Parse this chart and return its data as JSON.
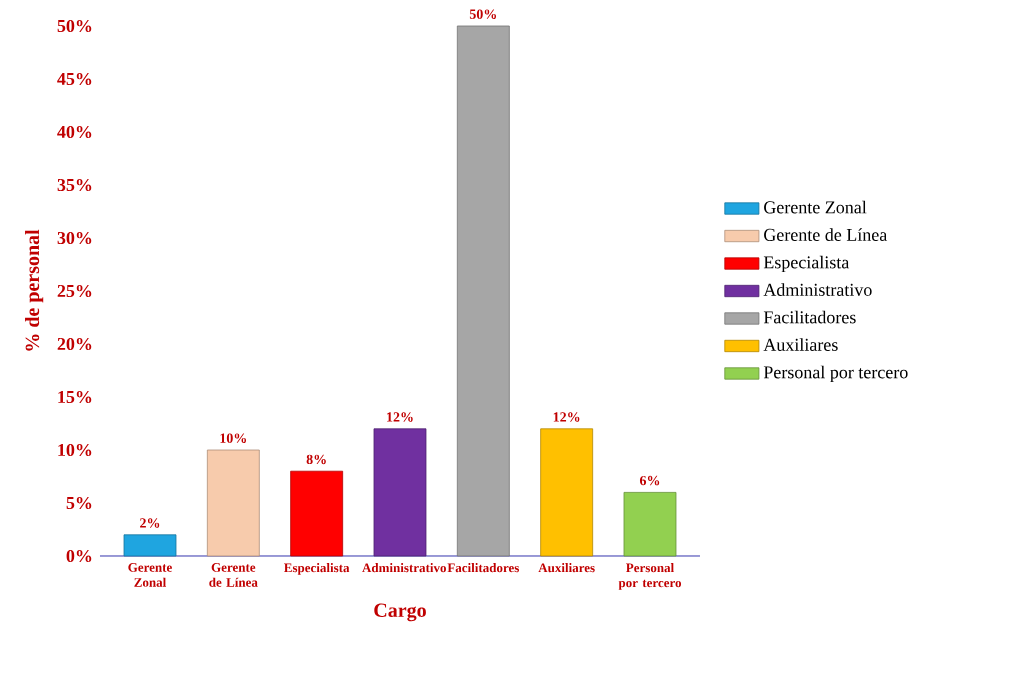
{
  "chart_data": {
    "type": "bar",
    "xlabel": "Cargo",
    "ylabel": "% de personal",
    "categories": [
      "Gerente Zonal",
      "Gerente de Línea",
      "Especialista",
      "Administrativo",
      "Facilitadores",
      "Auxiliares",
      "Personal por tercero"
    ],
    "series": [
      {
        "name": "Gerente Zonal",
        "color": "#1fa5e0",
        "values": [
          2,
          null,
          null,
          null,
          null,
          null,
          null
        ],
        "value_labels": [
          "2%",
          null,
          null,
          null,
          null,
          null,
          null
        ]
      },
      {
        "name": "Gerente de Línea",
        "color": "#f7cbac",
        "values": [
          null,
          10,
          null,
          null,
          null,
          null,
          null
        ],
        "value_labels": [
          null,
          "10%",
          null,
          null,
          null,
          null,
          null
        ]
      },
      {
        "name": "Especialista",
        "color": "#ff0000",
        "values": [
          null,
          null,
          8,
          null,
          null,
          null,
          null
        ],
        "value_labels": [
          null,
          null,
          "8%",
          null,
          null,
          null,
          null
        ]
      },
      {
        "name": "Administrativo",
        "color": "#7030a0",
        "values": [
          null,
          null,
          null,
          12,
          null,
          null,
          null
        ],
        "value_labels": [
          null,
          null,
          null,
          "12%",
          null,
          null,
          null
        ]
      },
      {
        "name": "Facilitadores",
        "color": "#a6a6a6",
        "values": [
          null,
          null,
          null,
          null,
          50,
          null,
          null
        ],
        "value_labels": [
          null,
          null,
          null,
          null,
          "50%",
          null,
          null
        ]
      },
      {
        "name": "Auxiliares",
        "color": "#ffc000",
        "values": [
          null,
          null,
          null,
          null,
          null,
          12,
          null
        ],
        "value_labels": [
          null,
          null,
          null,
          null,
          null,
          "12%",
          null
        ]
      },
      {
        "name": "Personal por tercero",
        "color": "#92d050",
        "values": [
          null,
          null,
          null,
          null,
          null,
          null,
          6
        ],
        "value_labels": [
          null,
          null,
          null,
          null,
          null,
          null,
          "6%"
        ]
      }
    ],
    "ylim": [
      0,
      50
    ],
    "yticks": [
      {
        "value": 0,
        "label": "0%"
      },
      {
        "value": 5,
        "label": "5%"
      },
      {
        "value": 10,
        "label": "10%"
      },
      {
        "value": 15,
        "label": "15%"
      },
      {
        "value": 20,
        "label": "20%"
      },
      {
        "value": 25,
        "label": "25%"
      },
      {
        "value": 30,
        "label": "30%"
      },
      {
        "value": 35,
        "label": "35%"
      },
      {
        "value": 40,
        "label": "40%"
      },
      {
        "value": 45,
        "label": "45%"
      },
      {
        "value": 50,
        "label": "50%"
      }
    ],
    "legend": "right"
  }
}
